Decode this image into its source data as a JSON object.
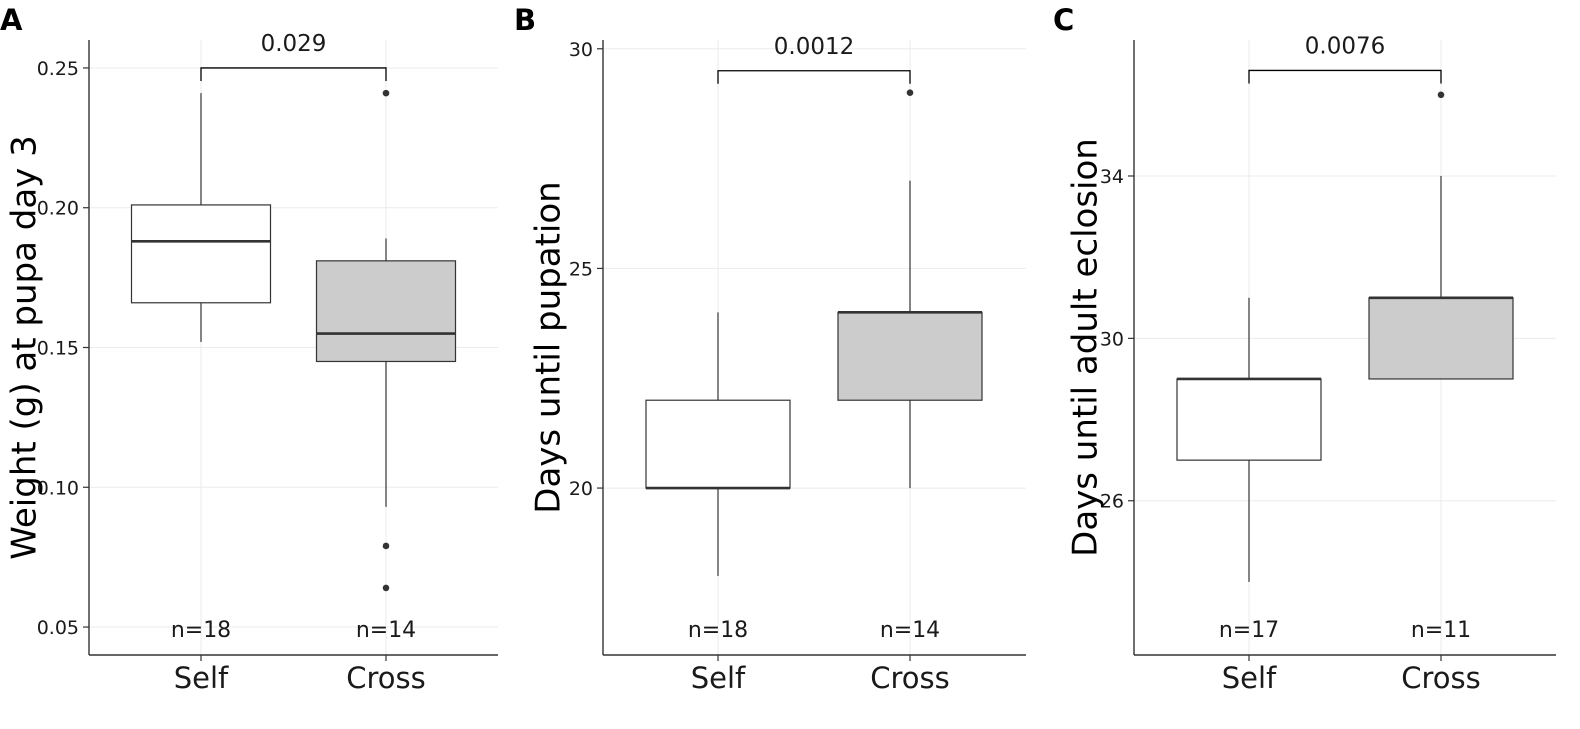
{
  "chart_data": [
    {
      "type": "boxplot",
      "panel_label": "A",
      "ylabel": "Weight (g) at pupa day 3",
      "ylim": [
        0.04,
        0.26
      ],
      "yticks": [
        0.05,
        0.1,
        0.15,
        0.2,
        0.25
      ],
      "ytick_labels": [
        "0.05",
        "0.10",
        "0.15",
        "0.20",
        "0.25"
      ],
      "grid": true,
      "categories": [
        "Self",
        "Cross"
      ],
      "boxes": [
        {
          "name": "Self",
          "n_label": "n=18",
          "color": "#ffffff",
          "whisker_low": 0.152,
          "q1": 0.166,
          "median": 0.188,
          "q3": 0.201,
          "whisker_high": 0.241,
          "outliers": []
        },
        {
          "name": "Cross",
          "n_label": "n=14",
          "color": "#cccccc",
          "whisker_low": 0.093,
          "q1": 0.145,
          "median": 0.155,
          "q3": 0.181,
          "whisker_high": 0.189,
          "outliers": [
            0.241,
            0.079,
            0.064
          ]
        }
      ],
      "comparison": {
        "label": "0.029",
        "y": 0.25
      }
    },
    {
      "type": "boxplot",
      "panel_label": "B",
      "ylabel": "Days until pupation",
      "ylim": [
        16.2,
        30.2
      ],
      "yticks": [
        20,
        25,
        30
      ],
      "ytick_labels": [
        "20",
        "25",
        "30"
      ],
      "grid": true,
      "categories": [
        "Self",
        "Cross"
      ],
      "boxes": [
        {
          "name": "Self",
          "n_label": "n=18",
          "color": "#ffffff",
          "whisker_low": 18,
          "q1": 20,
          "median": 20,
          "q3": 22,
          "whisker_high": 24,
          "outliers": []
        },
        {
          "name": "Cross",
          "n_label": "n=14",
          "color": "#cccccc",
          "whisker_low": 20,
          "q1": 22,
          "median": 24,
          "q3": 24,
          "whisker_high": 27,
          "outliers": [
            29
          ]
        }
      ],
      "comparison": {
        "label": "0.0012",
        "y": 29.5
      }
    },
    {
      "type": "boxplot",
      "panel_label": "C",
      "ylabel": "Days until adult eclosion",
      "ylim": [
        22.2,
        37.35
      ],
      "yticks": [
        26,
        30,
        34
      ],
      "ytick_labels": [
        "26",
        "30",
        "34"
      ],
      "grid": true,
      "categories": [
        "Self",
        "Cross"
      ],
      "boxes": [
        {
          "name": "Self",
          "n_label": "n=17",
          "color": "#ffffff",
          "whisker_low": 24,
          "q1": 27,
          "median": 29,
          "q3": 29,
          "whisker_high": 31,
          "outliers": []
        },
        {
          "name": "Cross",
          "n_label": "n=11",
          "color": "#cccccc",
          "whisker_low": 29,
          "q1": 29,
          "median": 31,
          "q3": 31,
          "whisker_high": 34,
          "outliers": [
            36
          ]
        }
      ],
      "comparison": {
        "label": "0.0076",
        "y": 36.6
      }
    }
  ]
}
